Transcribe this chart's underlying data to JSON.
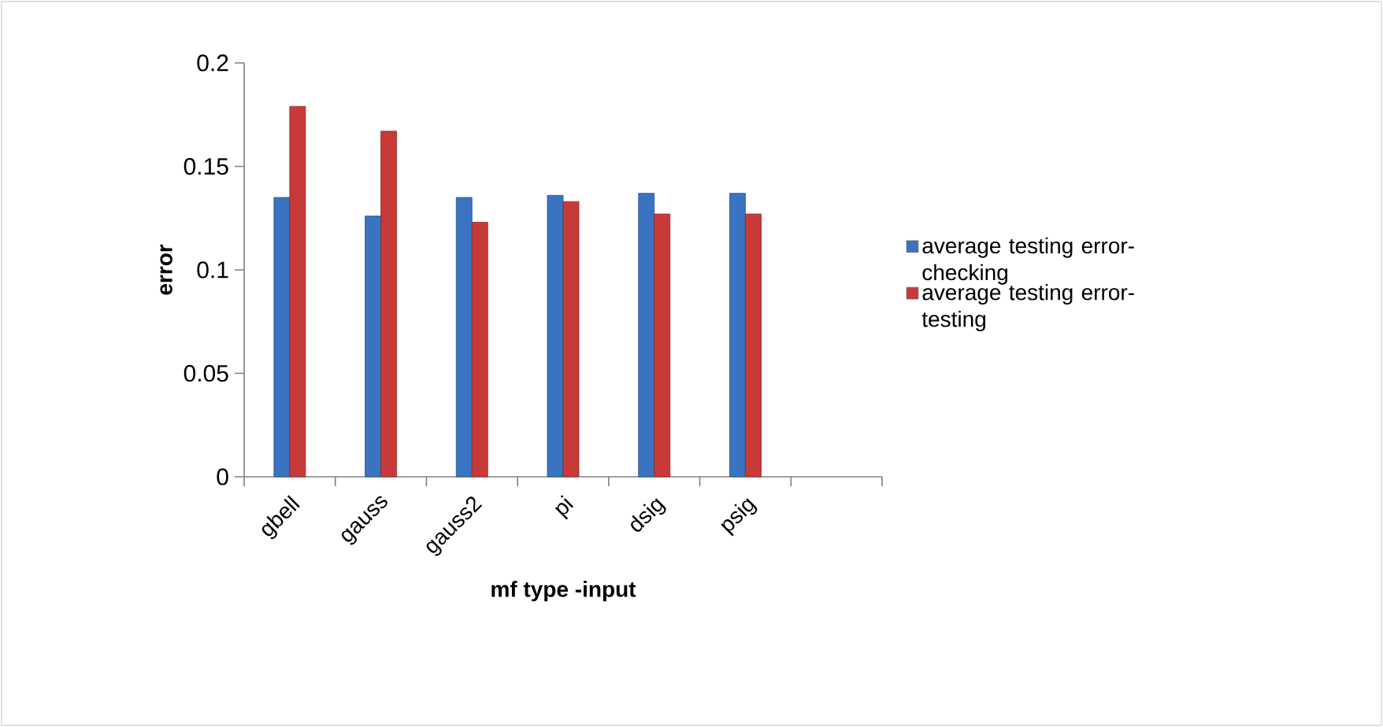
{
  "chart_data": {
    "type": "bar",
    "xlabel": "mf type -input",
    "ylabel": "error",
    "categories": [
      "gbell",
      "gauss",
      "gauss2",
      "pi",
      "dsig",
      "psig",
      null
    ],
    "series": [
      {
        "name": "average testing error-checking",
        "color": "#3a73c0",
        "values": [
          0.135,
          0.126,
          0.135,
          0.136,
          0.137,
          0.137,
          null
        ]
      },
      {
        "name": "average testing error-testing",
        "color": "#c83a38",
        "values": [
          0.179,
          0.167,
          0.123,
          0.133,
          0.127,
          0.127,
          null
        ]
      }
    ],
    "ylim": [
      0,
      0.2
    ],
    "yticks": [
      0,
      0.05,
      0.1,
      0.15,
      0.2
    ],
    "legend": "right",
    "grid": false
  }
}
